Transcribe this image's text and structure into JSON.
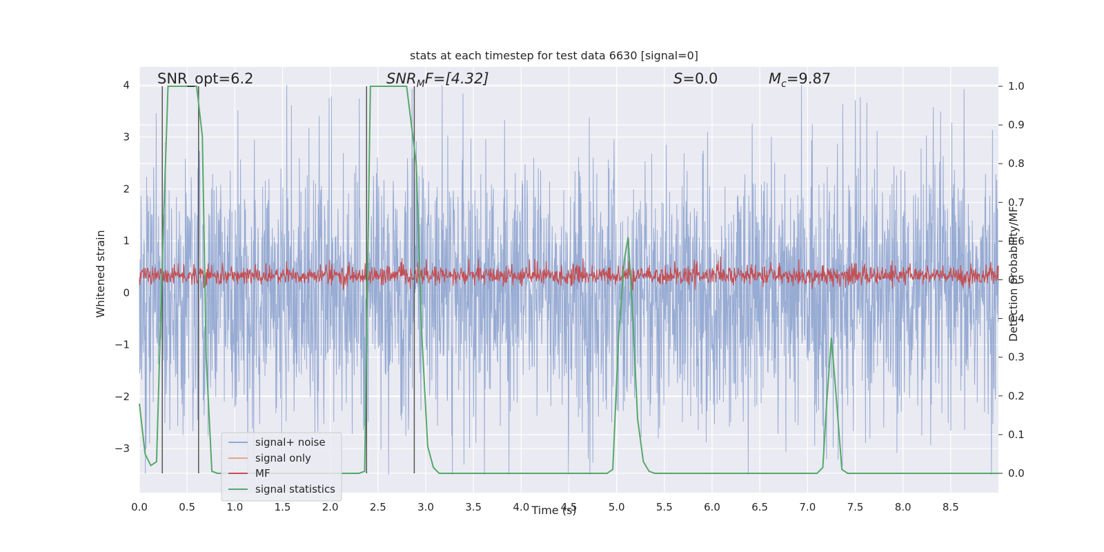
{
  "chart_data": {
    "type": "line",
    "title": "stats at each timestep for test data 6630 [signal=0]",
    "xlabel": "Time (s)",
    "ylabel_left": "Whitened strain",
    "ylabel_right": "Detection probability/MF",
    "xlim": [
      0,
      9.0
    ],
    "ylim_left": [
      -3.85,
      4.35
    ],
    "ylim_right": [
      -0.05,
      1.05
    ],
    "x_ticks": [
      "0.0",
      "0.5",
      "1.0",
      "1.5",
      "2.0",
      "2.5",
      "3.0",
      "3.5",
      "4.0",
      "4.5",
      "5.0",
      "5.5",
      "6.0",
      "6.5",
      "7.0",
      "7.5",
      "8.0",
      "8.5"
    ],
    "y_left_ticks": [
      "4",
      "3",
      "2",
      "1",
      "0",
      "−1",
      "−2",
      "−3"
    ],
    "y_right_ticks": [
      "1.0",
      "0.9",
      "0.8",
      "0.7",
      "0.6",
      "0.5",
      "0.4",
      "0.3",
      "0.2",
      "0.1",
      "0.0"
    ],
    "grid": true,
    "legend_position": "lower-left",
    "annotations": {
      "snr_opt": "SNR_opt=6.2",
      "snr_mf_main": "SNR",
      "snr_mf_sub": "M",
      "snr_mf_rest": "F=[4.32]",
      "s_main": "S",
      "s_rest": "=0.0",
      "mc_main": "M",
      "mc_sub": "c",
      "mc_rest": "=9.87"
    },
    "vertical_markers": [
      0.24,
      0.62,
      2.38,
      2.88
    ],
    "series": [
      {
        "name": "signal+ noise",
        "color": "#92a8d1",
        "axis": "left",
        "value_range": [
          -3.5,
          4.0
        ]
      },
      {
        "name": "signal only",
        "color": "#e8a48e",
        "axis": "left",
        "values": []
      },
      {
        "name": "MF",
        "color": "#c44e52",
        "axis": "right",
        "value_range": [
          0.47,
          0.56
        ]
      },
      {
        "name": "signal statistics",
        "color": "#55a868",
        "axis": "right",
        "x": [
          0.0,
          0.06,
          0.12,
          0.18,
          0.24,
          0.3,
          0.36,
          0.48,
          0.6,
          0.66,
          0.7,
          0.76,
          0.82,
          2.3,
          2.36,
          2.42,
          2.5,
          2.6,
          2.8,
          2.9,
          2.96,
          3.02,
          3.08,
          3.14,
          3.2,
          4.9,
          4.96,
          5.02,
          5.08,
          5.12,
          5.16,
          5.22,
          5.28,
          5.34,
          5.4,
          7.1,
          7.16,
          7.2,
          7.25,
          7.3,
          7.36,
          7.42,
          7.48,
          9.0
        ],
        "y": [
          0.18,
          0.05,
          0.02,
          0.03,
          0.55,
          1.0,
          1.0,
          1.0,
          1.0,
          0.87,
          0.3,
          0.005,
          0.0,
          0.0,
          0.005,
          1.0,
          1.0,
          1.0,
          1.0,
          0.8,
          0.35,
          0.07,
          0.015,
          0.0,
          0.0,
          0.0,
          0.01,
          0.35,
          0.55,
          0.61,
          0.45,
          0.14,
          0.03,
          0.005,
          0.0,
          0.0,
          0.015,
          0.18,
          0.35,
          0.2,
          0.01,
          0.0,
          0.0,
          0.0
        ]
      }
    ]
  }
}
